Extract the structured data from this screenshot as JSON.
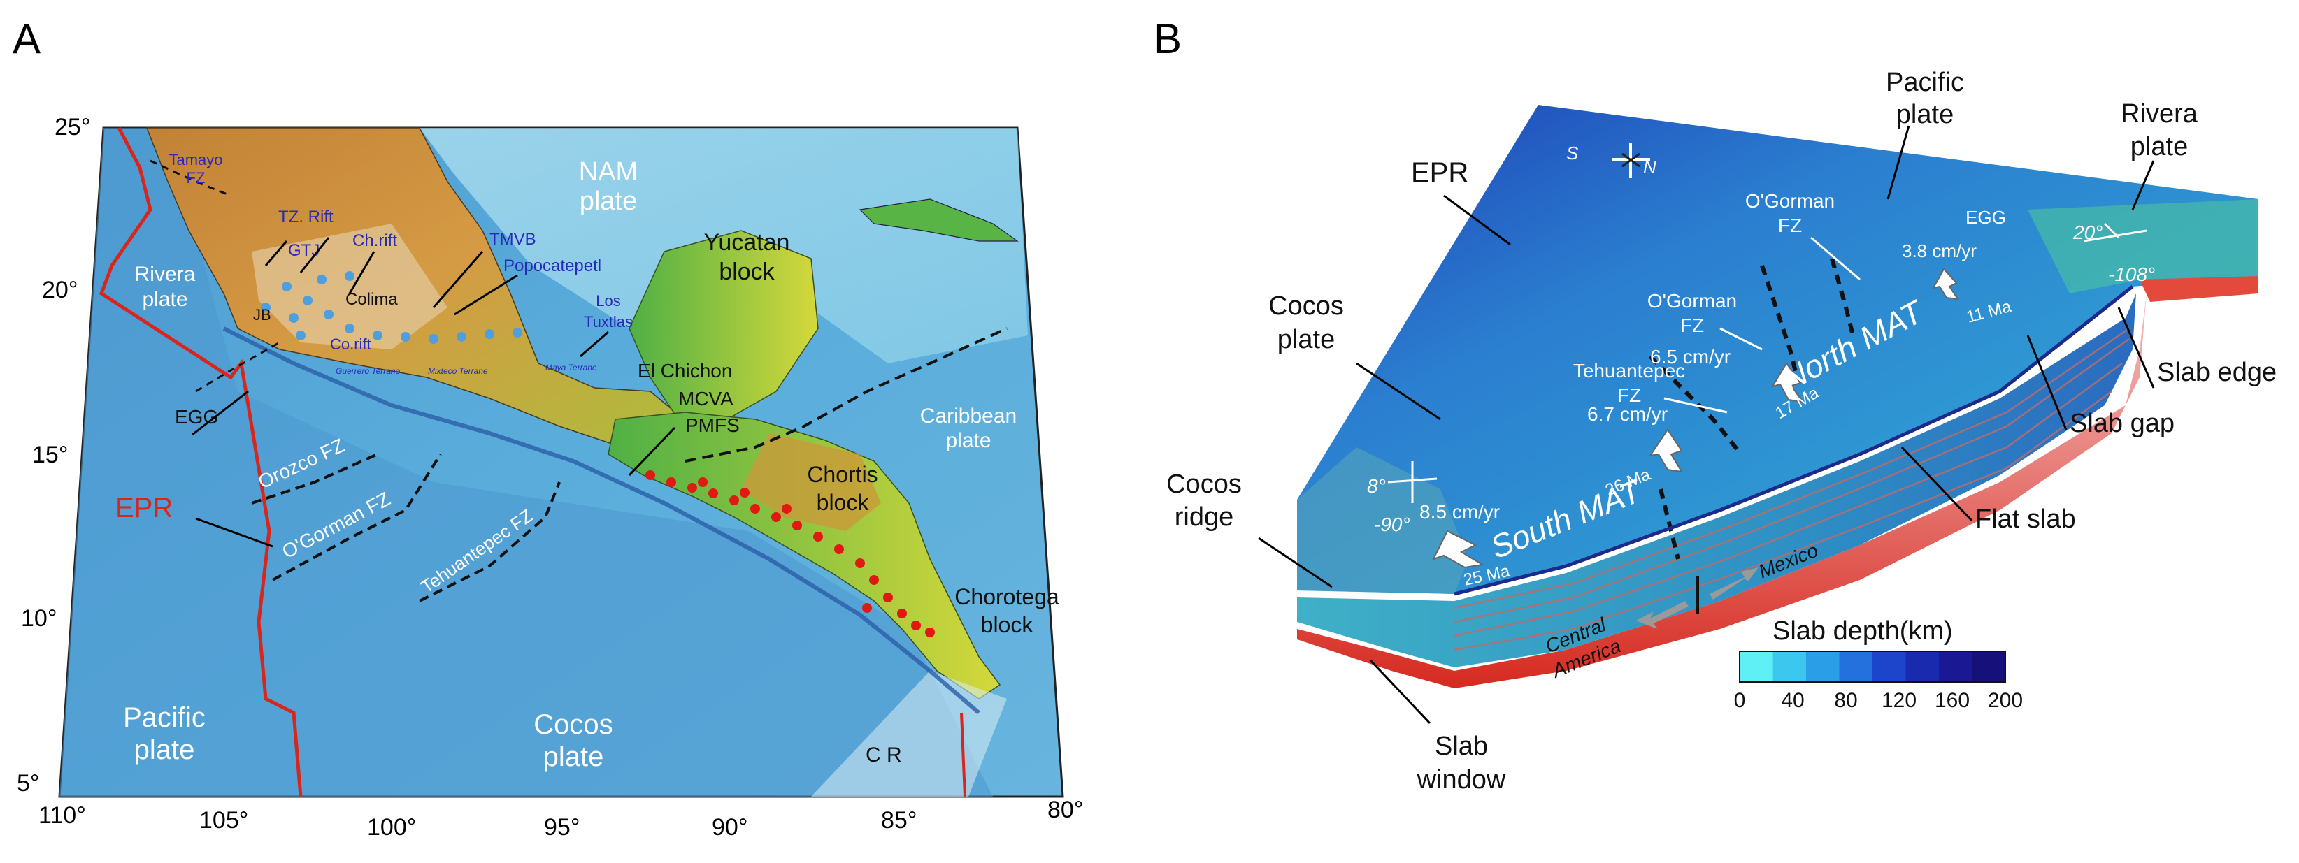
{
  "panels": {
    "a": "A",
    "b": "B"
  },
  "map_a": {
    "lat_labels": [
      "25°",
      "20°",
      "15°",
      "10°",
      "5°"
    ],
    "lon_labels": [
      "110°",
      "105°",
      "100°",
      "95°",
      "90°",
      "85°",
      "80°"
    ],
    "plates": {
      "nam": "NAM",
      "nam2": "plate",
      "rivera": "Rivera",
      "rivera2": "plate",
      "pacific": "Pacific",
      "pacific2": "plate",
      "cocos": "Cocos",
      "cocos2": "plate",
      "caribbean": "Caribbean",
      "caribbean2": "plate"
    },
    "blocks": {
      "yucatan": "Yucatan",
      "yucatan2": "block",
      "chortis": "Chortis",
      "chortis2": "block",
      "chorotega": "Chorotega",
      "chorotega2": "block"
    },
    "features": {
      "tamayo": "Tamayo",
      "tamayo_fz": "FZ",
      "tz_rift": "TZ. Rift",
      "gtj": "GTJ",
      "ch_rift": "Ch.rift",
      "colima": "Colima",
      "jb": "JB",
      "co_rift": "Co.rift",
      "tmvb": "TMVB",
      "popocatepetl": "Popocatepetl",
      "los": "Los",
      "tuxtlas": "Tuxtlas",
      "el_chichon": "El Chichon",
      "mcva": "MCVA",
      "pmfs": "PMFS",
      "egg": "EGG",
      "orozco": "Orozco FZ",
      "ogorman": "O'Gorman FZ",
      "tehuantepec": "Tehuantepec FZ",
      "epr": "EPR",
      "cr": "C R",
      "terrace1": "Guerrero Terrane",
      "terrace2": "Mixteco Terrane",
      "terrace3": "Maya Terrane"
    },
    "colors": {
      "ocean": "#5aa6d6",
      "deep": "#3c8bc4",
      "land_low": "#2e9a3c",
      "land_high": "#b8752a",
      "ridge": "#d8261c",
      "volcano_blue": "#4e9fe0",
      "volcano_red": "#e01a12"
    }
  },
  "map_b": {
    "labels": {
      "epr": "EPR",
      "pacific": "Pacific",
      "pacific2": "plate",
      "rivera": "Rivera",
      "rivera2": "plate",
      "cocos": "Cocos",
      "cocos2": "plate",
      "cocos_ridge": "Cocos",
      "cocos_ridge2": "ridge",
      "ogorman_a": "O'Gorman",
      "ogorman_a2": "FZ",
      "ogorman_b": "O'Gorman",
      "ogorman_b2": "FZ",
      "tehuantepec": "Tehuantepec",
      "tehuantepec2": "FZ",
      "egg": "EGG",
      "rate_38": "3.8 cm/yr",
      "rate_65": "6.5 cm/yr",
      "rate_67": "6.7 cm/yr",
      "rate_85": "8.5 cm/yr",
      "north_mat": "North MAT",
      "south_mat": "South MAT",
      "age_11": "11 Ma",
      "age_17": "17 Ma",
      "age_26": "26 Ma",
      "age_25": "25 Ma",
      "lat20": "20°",
      "lon108": "-108°",
      "lat8": "8°",
      "lon90": "-90°",
      "compass_s": "S",
      "compass_n": "N",
      "slab_edge": "Slab edge",
      "slab_gap": "Slab gap",
      "flat_slab": "Flat slab",
      "slab_window": "Slab",
      "slab_window2": "window",
      "central": "Central",
      "america": "America",
      "mexico": "Mexico"
    },
    "legend": {
      "title": "Slab depth(km)",
      "ticks": [
        "0",
        "40",
        "80",
        "120",
        "160",
        "200"
      ],
      "colors": [
        "#5ef0f4",
        "#3cc8ee",
        "#2a9ee6",
        "#2470dc",
        "#1d45cc",
        "#1a2aae",
        "#1a1892",
        "#16107a"
      ]
    }
  }
}
